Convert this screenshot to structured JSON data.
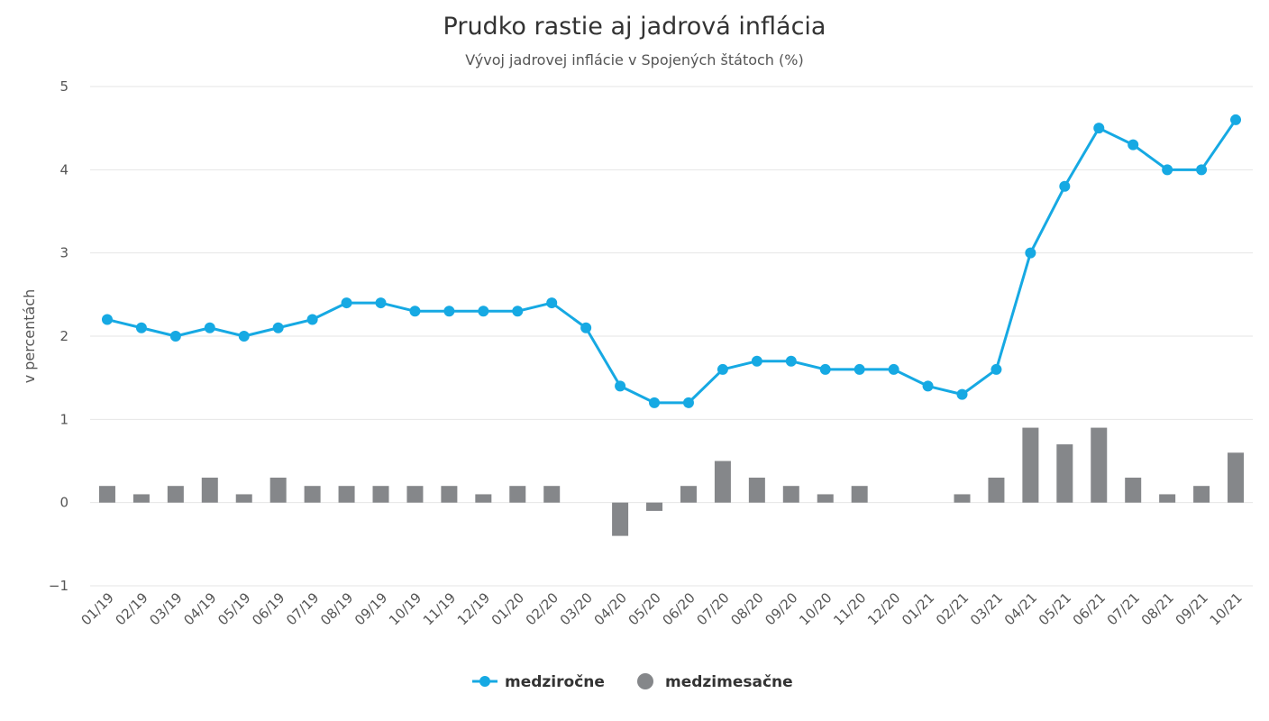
{
  "chart_data": {
    "type": "bar+line",
    "title": "Prudko rastie aj jadrová inflácia",
    "subtitle": "Vývoj jadrovej inflácie v Spojených štátoch (%)",
    "ylabel": "v percentách",
    "ylim": [
      -1,
      5
    ],
    "yticks": [
      "−1",
      "0",
      "1",
      "2",
      "3",
      "4",
      "5"
    ],
    "ytick_values": [
      -1,
      0,
      1,
      2,
      3,
      4,
      5
    ],
    "grid": true,
    "legend_position": "bottom",
    "categories": [
      "01/19",
      "02/19",
      "03/19",
      "04/19",
      "05/19",
      "06/19",
      "07/19",
      "08/19",
      "09/19",
      "10/19",
      "11/19",
      "12/19",
      "01/20",
      "02/20",
      "03/20",
      "04/20",
      "05/20",
      "06/20",
      "07/20",
      "08/20",
      "09/20",
      "10/20",
      "11/20",
      "12/20",
      "01/21",
      "02/21",
      "03/21",
      "04/21",
      "05/21",
      "06/21",
      "07/21",
      "08/21",
      "09/21",
      "10/21"
    ],
    "series": [
      {
        "name": "medziročne",
        "type": "line",
        "color": "#16a9e3",
        "values": [
          2.2,
          2.1,
          2.0,
          2.1,
          2.0,
          2.1,
          2.2,
          2.4,
          2.4,
          2.3,
          2.3,
          2.3,
          2.3,
          2.4,
          2.1,
          1.4,
          1.2,
          1.2,
          1.6,
          1.7,
          1.7,
          1.6,
          1.6,
          1.6,
          1.4,
          1.3,
          1.6,
          3.0,
          3.8,
          4.5,
          4.3,
          4.0,
          4.0,
          4.6
        ]
      },
      {
        "name": "medzimesačne",
        "type": "bar",
        "color": "#85878a",
        "values": [
          0.2,
          0.1,
          0.2,
          0.3,
          0.1,
          0.3,
          0.2,
          0.2,
          0.2,
          0.2,
          0.2,
          0.1,
          0.2,
          0.2,
          0.0,
          -0.4,
          -0.1,
          0.2,
          0.5,
          0.3,
          0.2,
          0.1,
          0.2,
          0.0,
          0.0,
          0.1,
          0.3,
          0.9,
          0.7,
          0.9,
          0.3,
          0.1,
          0.2,
          0.6
        ]
      }
    ]
  }
}
